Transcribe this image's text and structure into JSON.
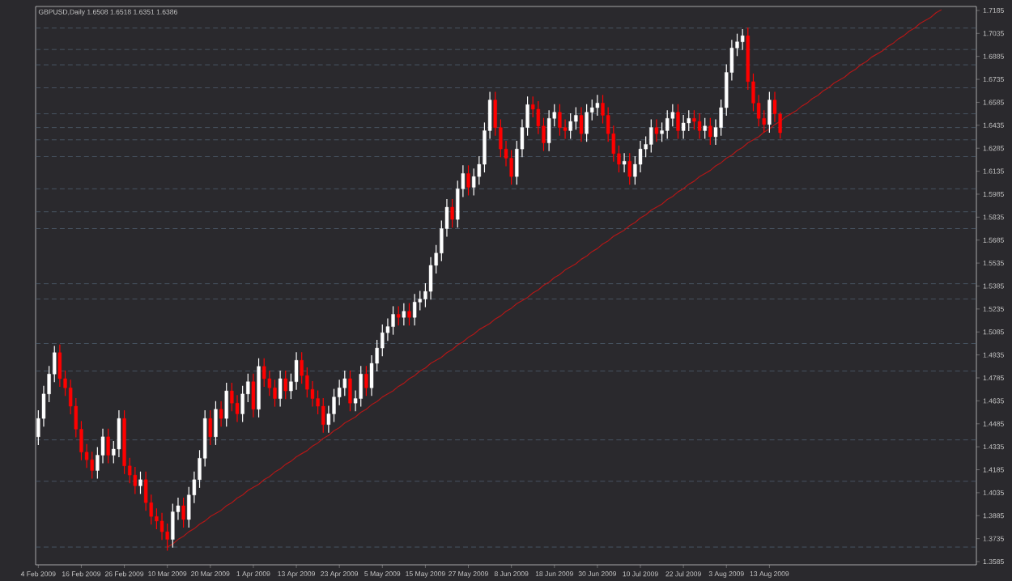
{
  "chart_data": {
    "type": "candlestick",
    "title": "GBPUSD,Daily 1.6508 1.6518 1.6351 1.6386",
    "categories": [
      "4 Feb 2009",
      null,
      null,
      null,
      null,
      null,
      null,
      null,
      "16 Feb 2009",
      null,
      null,
      null,
      null,
      null,
      null,
      null,
      "26 Feb 2009",
      null,
      null,
      null,
      null,
      null,
      null,
      null,
      "10 Mar 2009",
      null,
      null,
      null,
      null,
      null,
      null,
      null,
      "20 Mar 2009",
      null,
      null,
      null,
      null,
      null,
      null,
      null,
      "1 Apr 2009",
      null,
      null,
      null,
      null,
      null,
      null,
      null,
      "13 Apr 2009",
      null,
      null,
      null,
      null,
      null,
      null,
      null,
      "23 Apr 2009",
      null,
      null,
      null,
      null,
      null,
      null,
      null,
      "5 May 2009",
      null,
      null,
      null,
      null,
      null,
      null,
      null,
      "15 May 2009",
      null,
      null,
      null,
      null,
      null,
      null,
      null,
      "27 May 2009",
      null,
      null,
      null,
      null,
      null,
      null,
      null,
      "8 Jun 2009",
      null,
      null,
      null,
      null,
      null,
      null,
      null,
      "18 Jun 2009",
      null,
      null,
      null,
      null,
      null,
      null,
      null,
      "30 Jun 2009",
      null,
      null,
      null,
      null,
      null,
      null,
      null,
      "10 Jul 2009",
      null,
      null,
      null,
      null,
      null,
      null,
      null,
      "22 Jul 2009",
      null,
      null,
      null,
      null,
      null,
      null,
      null,
      "3 Aug 2009",
      null,
      null,
      null,
      null,
      null,
      null,
      null,
      "13 Aug 2009",
      null,
      null,
      null,
      null,
      null,
      null,
      null,
      null,
      null,
      null,
      null,
      null,
      null,
      null,
      null,
      null,
      null,
      null,
      null,
      null,
      null,
      null,
      null,
      null,
      null,
      null,
      null,
      null,
      null,
      null,
      null,
      null,
      null,
      null,
      null,
      null,
      null,
      null
    ],
    "ohlc": [
      [
        1.44,
        1.457,
        1.435,
        1.452
      ],
      [
        1.452,
        1.473,
        1.447,
        1.468
      ],
      [
        1.468,
        1.486,
        1.463,
        1.481
      ],
      [
        1.481,
        1.499,
        1.476,
        1.495
      ],
      [
        1.495,
        1.5,
        1.473,
        1.478
      ],
      [
        1.478,
        1.483,
        1.467,
        1.472
      ],
      [
        1.472,
        1.477,
        1.455,
        1.46
      ],
      [
        1.46,
        1.465,
        1.44,
        1.445
      ],
      [
        1.445,
        1.45,
        1.425,
        1.43
      ],
      [
        1.43,
        1.435,
        1.42,
        1.425
      ],
      [
        1.425,
        1.43,
        1.413,
        1.418
      ],
      [
        1.418,
        1.433,
        1.413,
        1.428
      ],
      [
        1.428,
        1.445,
        1.423,
        1.44
      ],
      [
        1.44,
        1.445,
        1.423,
        1.428
      ],
      [
        1.428,
        1.437,
        1.423,
        1.432
      ],
      [
        1.432,
        1.457,
        1.427,
        1.452
      ],
      [
        1.452,
        1.457,
        1.416,
        1.421
      ],
      [
        1.421,
        1.426,
        1.41,
        1.415
      ],
      [
        1.415,
        1.42,
        1.403,
        1.408
      ],
      [
        1.408,
        1.417,
        1.403,
        1.412
      ],
      [
        1.412,
        1.417,
        1.392,
        1.397
      ],
      [
        1.397,
        1.402,
        1.383,
        1.388
      ],
      [
        1.388,
        1.393,
        1.38,
        1.385
      ],
      [
        1.385,
        1.39,
        1.373,
        1.378
      ],
      [
        1.378,
        1.383,
        1.366,
        1.373
      ],
      [
        1.373,
        1.396,
        1.368,
        1.391
      ],
      [
        1.391,
        1.4,
        1.386,
        1.395
      ],
      [
        1.395,
        1.4,
        1.381,
        1.386
      ],
      [
        1.386,
        1.407,
        1.381,
        1.402
      ],
      [
        1.402,
        1.417,
        1.397,
        1.412
      ],
      [
        1.412,
        1.431,
        1.407,
        1.426
      ],
      [
        1.426,
        1.457,
        1.421,
        1.452
      ],
      [
        1.452,
        1.457,
        1.435,
        1.44
      ],
      [
        1.44,
        1.463,
        1.435,
        1.458
      ],
      [
        1.458,
        1.463,
        1.447,
        1.452
      ],
      [
        1.452,
        1.475,
        1.447,
        1.47
      ],
      [
        1.47,
        1.475,
        1.457,
        1.462
      ],
      [
        1.462,
        1.467,
        1.45,
        1.455
      ],
      [
        1.455,
        1.473,
        1.45,
        1.468
      ],
      [
        1.468,
        1.481,
        1.463,
        1.476
      ],
      [
        1.476,
        1.481,
        1.453,
        1.458
      ],
      [
        1.458,
        1.491,
        1.453,
        1.486
      ],
      [
        1.486,
        1.491,
        1.473,
        1.478
      ],
      [
        1.478,
        1.483,
        1.467,
        1.472
      ],
      [
        1.472,
        1.477,
        1.46,
        1.465
      ],
      [
        1.465,
        1.483,
        1.46,
        1.478
      ],
      [
        1.478,
        1.483,
        1.465,
        1.47
      ],
      [
        1.47,
        1.481,
        1.465,
        1.476
      ],
      [
        1.476,
        1.495,
        1.471,
        1.49
      ],
      [
        1.49,
        1.495,
        1.475,
        1.48
      ],
      [
        1.48,
        1.485,
        1.466,
        1.471
      ],
      [
        1.471,
        1.476,
        1.46,
        1.465
      ],
      [
        1.465,
        1.47,
        1.455,
        1.46
      ],
      [
        1.46,
        1.465,
        1.443,
        1.448
      ],
      [
        1.448,
        1.46,
        1.443,
        1.455
      ],
      [
        1.455,
        1.471,
        1.45,
        1.466
      ],
      [
        1.466,
        1.477,
        1.461,
        1.472
      ],
      [
        1.472,
        1.483,
        1.467,
        1.478
      ],
      [
        1.478,
        1.483,
        1.457,
        1.462
      ],
      [
        1.462,
        1.47,
        1.457,
        1.465
      ],
      [
        1.465,
        1.486,
        1.46,
        1.481
      ],
      [
        1.481,
        1.486,
        1.467,
        1.472
      ],
      [
        1.472,
        1.493,
        1.467,
        1.488
      ],
      [
        1.488,
        1.503,
        1.483,
        1.498
      ],
      [
        1.498,
        1.513,
        1.493,
        1.508
      ],
      [
        1.508,
        1.517,
        1.503,
        1.512
      ],
      [
        1.512,
        1.525,
        1.507,
        1.52
      ],
      [
        1.52,
        1.525,
        1.513,
        1.518
      ],
      [
        1.518,
        1.527,
        1.513,
        1.522
      ],
      [
        1.522,
        1.527,
        1.513,
        1.518
      ],
      [
        1.518,
        1.533,
        1.513,
        1.528
      ],
      [
        1.528,
        1.535,
        1.523,
        1.53
      ],
      [
        1.53,
        1.54,
        1.525,
        1.535
      ],
      [
        1.535,
        1.557,
        1.53,
        1.552
      ],
      [
        1.552,
        1.565,
        1.547,
        1.56
      ],
      [
        1.56,
        1.581,
        1.555,
        1.576
      ],
      [
        1.576,
        1.595,
        1.571,
        1.59
      ],
      [
        1.59,
        1.595,
        1.577,
        1.582
      ],
      [
        1.582,
        1.607,
        1.577,
        1.602
      ],
      [
        1.602,
        1.617,
        1.597,
        1.612
      ],
      [
        1.612,
        1.617,
        1.598,
        1.603
      ],
      [
        1.603,
        1.615,
        1.598,
        1.61
      ],
      [
        1.61,
        1.623,
        1.605,
        1.618
      ],
      [
        1.618,
        1.645,
        1.613,
        1.64
      ],
      [
        1.64,
        1.665,
        1.635,
        1.66
      ],
      [
        1.66,
        1.665,
        1.637,
        1.642
      ],
      [
        1.642,
        1.647,
        1.623,
        1.628
      ],
      [
        1.628,
        1.633,
        1.617,
        1.622
      ],
      [
        1.622,
        1.627,
        1.605,
        1.61
      ],
      [
        1.61,
        1.633,
        1.605,
        1.628
      ],
      [
        1.628,
        1.647,
        1.623,
        1.642
      ],
      [
        1.642,
        1.662,
        1.637,
        1.657
      ],
      [
        1.657,
        1.662,
        1.649,
        1.654
      ],
      [
        1.654,
        1.659,
        1.638,
        1.643
      ],
      [
        1.643,
        1.648,
        1.627,
        1.632
      ],
      [
        1.632,
        1.653,
        1.627,
        1.648
      ],
      [
        1.648,
        1.657,
        1.643,
        1.652
      ],
      [
        1.652,
        1.657,
        1.637,
        1.642
      ],
      [
        1.642,
        1.647,
        1.635,
        1.64
      ],
      [
        1.64,
        1.651,
        1.635,
        1.646
      ],
      [
        1.646,
        1.655,
        1.641,
        1.65
      ],
      [
        1.65,
        1.655,
        1.633,
        1.638
      ],
      [
        1.638,
        1.657,
        1.633,
        1.652
      ],
      [
        1.652,
        1.66,
        1.647,
        1.655
      ],
      [
        1.655,
        1.663,
        1.65,
        1.658
      ],
      [
        1.658,
        1.663,
        1.645,
        1.65
      ],
      [
        1.65,
        1.655,
        1.633,
        1.638
      ],
      [
        1.638,
        1.643,
        1.62,
        1.625
      ],
      [
        1.625,
        1.63,
        1.613,
        1.618
      ],
      [
        1.618,
        1.625,
        1.613,
        1.62
      ],
      [
        1.62,
        1.625,
        1.605,
        1.61
      ],
      [
        1.61,
        1.623,
        1.605,
        1.618
      ],
      [
        1.618,
        1.633,
        1.613,
        1.628
      ],
      [
        1.628,
        1.636,
        1.623,
        1.631
      ],
      [
        1.631,
        1.647,
        1.626,
        1.642
      ],
      [
        1.642,
        1.647,
        1.633,
        1.638
      ],
      [
        1.638,
        1.645,
        1.633,
        1.64
      ],
      [
        1.64,
        1.653,
        1.635,
        1.648
      ],
      [
        1.648,
        1.657,
        1.643,
        1.652
      ],
      [
        1.652,
        1.657,
        1.635,
        1.64
      ],
      [
        1.64,
        1.65,
        1.635,
        1.645
      ],
      [
        1.645,
        1.653,
        1.64,
        1.648
      ],
      [
        1.648,
        1.653,
        1.641,
        1.646
      ],
      [
        1.646,
        1.651,
        1.635,
        1.64
      ],
      [
        1.64,
        1.648,
        1.635,
        1.643
      ],
      [
        1.643,
        1.648,
        1.631,
        1.636
      ],
      [
        1.636,
        1.647,
        1.631,
        1.642
      ],
      [
        1.642,
        1.66,
        1.637,
        1.655
      ],
      [
        1.655,
        1.683,
        1.65,
        1.678
      ],
      [
        1.678,
        1.699,
        1.673,
        1.694
      ],
      [
        1.694,
        1.703,
        1.689,
        1.698
      ],
      [
        1.698,
        1.706,
        1.693,
        1.702
      ],
      [
        1.702,
        1.707,
        1.667,
        1.672
      ],
      [
        1.672,
        1.677,
        1.653,
        1.658
      ],
      [
        1.658,
        1.663,
        1.643,
        1.648
      ],
      [
        1.648,
        1.653,
        1.639,
        1.644
      ],
      [
        1.644,
        1.665,
        1.639,
        1.66
      ],
      [
        1.66,
        1.665,
        1.646,
        1.651
      ],
      [
        1.6508,
        1.6518,
        1.6351,
        1.6386
      ],
      null,
      null,
      null,
      null,
      null,
      null,
      null,
      null,
      null,
      null,
      null,
      null,
      null,
      null,
      null,
      null,
      null,
      null,
      null,
      null,
      null,
      null,
      null,
      null,
      null,
      null,
      null,
      null,
      null,
      null,
      null,
      null,
      null,
      null,
      null,
      null
    ],
    "series": [
      {
        "type": "line",
        "color": "#b01818",
        "values": [
          null,
          null,
          null,
          null,
          null,
          null,
          null,
          null,
          null,
          null,
          null,
          null,
          null,
          null,
          null,
          null,
          null,
          null,
          null,
          null,
          null,
          null,
          null,
          null,
          1.368,
          1.37,
          1.373,
          1.375,
          1.378,
          1.38,
          1.383,
          1.385,
          1.388,
          1.39,
          1.392,
          1.395,
          1.397,
          1.4,
          1.402,
          1.405,
          1.407,
          1.409,
          1.412,
          1.414,
          1.417,
          1.419,
          1.422,
          1.424,
          1.427,
          1.429,
          1.431,
          1.434,
          1.436,
          1.439,
          1.441,
          1.444,
          1.446,
          1.449,
          1.451,
          1.453,
          1.456,
          1.458,
          1.461,
          1.463,
          1.466,
          1.468,
          1.47,
          1.473,
          1.475,
          1.478,
          1.48,
          1.483,
          1.485,
          1.488,
          1.49,
          1.492,
          1.495,
          1.497,
          1.5,
          1.502,
          1.505,
          1.507,
          1.51,
          1.512,
          1.514,
          1.517,
          1.519,
          1.522,
          1.524,
          1.527,
          1.529,
          1.531,
          1.534,
          1.536,
          1.539,
          1.541,
          1.544,
          1.546,
          1.549,
          1.551,
          1.553,
          1.556,
          1.558,
          1.561,
          1.563,
          1.566,
          1.568,
          1.571,
          1.573,
          1.575,
          1.578,
          1.58,
          1.583,
          1.585,
          1.588,
          1.59,
          1.592,
          1.595,
          1.597,
          1.6,
          1.602,
          1.605,
          1.607,
          1.61,
          1.612,
          1.614,
          1.617,
          1.619,
          1.622,
          1.624,
          1.627,
          1.629,
          1.632,
          1.634,
          1.636,
          1.639,
          1.641,
          1.644,
          1.646,
          1.649,
          1.651,
          1.653,
          1.656,
          1.658,
          1.661,
          1.663,
          1.666,
          1.668,
          1.671,
          1.673,
          1.675,
          1.678,
          1.68,
          1.683,
          1.685,
          1.688,
          1.69,
          1.692,
          1.695,
          1.697,
          1.7,
          1.702,
          1.705,
          1.707,
          1.71,
          1.712,
          1.714,
          1.717,
          1.719,
          null,
          null,
          null,
          null,
          null,
          null
        ]
      }
    ],
    "ylim": [
      1.3564,
      1.7211
    ],
    "yticks": [
      1.3585,
      1.3735,
      1.3885,
      1.4035,
      1.4185,
      1.4335,
      1.4485,
      1.4635,
      1.4785,
      1.4935,
      1.5085,
      1.5235,
      1.5385,
      1.5535,
      1.5685,
      1.5835,
      1.5985,
      1.6135,
      1.6285,
      1.6435,
      1.6585,
      1.6735,
      1.6885,
      1.7035,
      1.7185
    ],
    "ref_lines": [
      {
        "axis": "y",
        "value": 1.707,
        "color": "#4f6070",
        "line_style": "dashed"
      },
      {
        "axis": "y",
        "value": 1.693,
        "color": "#4f6070",
        "line_style": "dashed"
      },
      {
        "axis": "y",
        "value": 1.683,
        "color": "#4f6070",
        "line_style": "dashed"
      },
      {
        "axis": "y",
        "value": 1.668,
        "color": "#4f6070",
        "line_style": "dashed"
      },
      {
        "axis": "y",
        "value": 1.651,
        "color": "#4f6070",
        "line_style": "dashed"
      },
      {
        "axis": "y",
        "value": 1.642,
        "color": "#4f6070",
        "line_style": "dashed"
      },
      {
        "axis": "y",
        "value": 1.634,
        "color": "#4f6070",
        "line_style": "dashed"
      },
      {
        "axis": "y",
        "value": 1.623,
        "color": "#4f6070",
        "line_style": "dashed"
      },
      {
        "axis": "y",
        "value": 1.602,
        "color": "#4f6070",
        "line_style": "dashed"
      },
      {
        "axis": "y",
        "value": 1.587,
        "color": "#4f6070",
        "line_style": "dashed"
      },
      {
        "axis": "y",
        "value": 1.576,
        "color": "#4f6070",
        "line_style": "dashed"
      },
      {
        "axis": "y",
        "value": 1.54,
        "color": "#4f6070",
        "line_style": "dashed"
      },
      {
        "axis": "y",
        "value": 1.53,
        "color": "#4f6070",
        "line_style": "dashed"
      },
      {
        "axis": "y",
        "value": 1.501,
        "color": "#4f6070",
        "line_style": "dashed"
      },
      {
        "axis": "y",
        "value": 1.483,
        "color": "#4f6070",
        "line_style": "dashed"
      },
      {
        "axis": "y",
        "value": 1.438,
        "color": "#4f6070",
        "line_style": "dashed"
      },
      {
        "axis": "y",
        "value": 1.411,
        "color": "#4f6070",
        "line_style": "dashed"
      },
      {
        "axis": "y",
        "value": 1.368,
        "color": "#4f6070",
        "line_style": "dashed"
      }
    ]
  }
}
